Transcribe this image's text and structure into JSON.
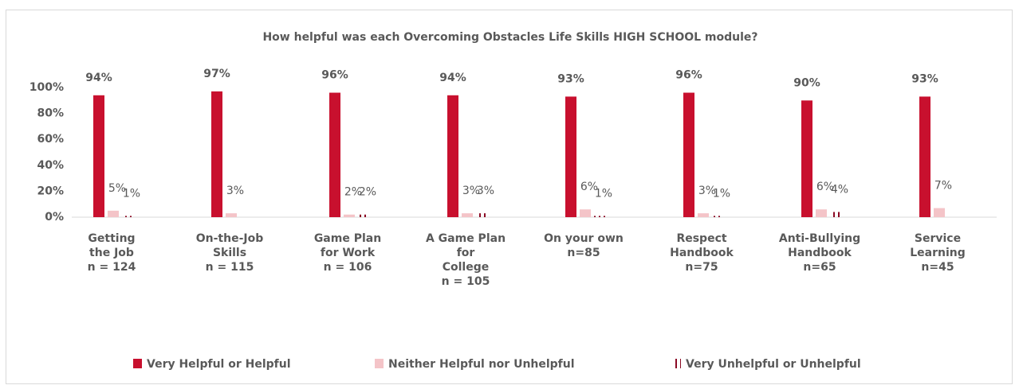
{
  "chart_data": {
    "type": "bar",
    "title": "How helpful was each  Overcoming Obstacles Life Skills HIGH SCHOOL module?",
    "categories": [
      [
        "Getting",
        "the Job",
        "n = 124"
      ],
      [
        "On-the-Job",
        "Skills",
        "n = 115"
      ],
      [
        "Game Plan",
        "for Work",
        "n = 106"
      ],
      [
        "A Game Plan",
        "for",
        "College",
        "n = 105"
      ],
      [
        "On your own",
        "n=85"
      ],
      [
        "Respect",
        "Handbook",
        "n=75"
      ],
      [
        "Anti-Bullying",
        "Handbook",
        "n=65"
      ],
      [
        "Service",
        "Learning",
        "n=45"
      ]
    ],
    "series": [
      {
        "name": "Very Helpful or Helpful",
        "color": "#c8102e",
        "values": [
          94,
          97,
          96,
          94,
          93,
          96,
          90,
          93
        ],
        "value_labels": [
          "94%",
          "97%",
          "96%",
          "94%",
          "93%",
          "96%",
          "90%",
          "93%"
        ]
      },
      {
        "name": "Neither Helpful nor Unhelpful",
        "color": "#f4c4c8",
        "values": [
          5,
          3,
          2,
          3,
          6,
          3,
          6,
          7
        ],
        "value_labels": [
          "5%",
          "3%",
          "2%",
          "3%",
          "6%",
          "3%",
          "6%",
          "7%"
        ]
      },
      {
        "name": "Very Unhelpful or Unhelpful",
        "color": "#8b0a24",
        "pattern": "vertical-stripes",
        "values": [
          1,
          null,
          2,
          3,
          1,
          1,
          4,
          null
        ],
        "value_labels": [
          "1%",
          null,
          "2%",
          "3%",
          "1%",
          "1%",
          "4%",
          null
        ]
      }
    ],
    "ylim": [
      0,
      100
    ],
    "yticks": [
      {
        "value": 0,
        "label": "0%"
      },
      {
        "value": 20,
        "label": "20%"
      },
      {
        "value": 40,
        "label": "40%"
      },
      {
        "value": 60,
        "label": "60%"
      },
      {
        "value": 80,
        "label": "80%"
      },
      {
        "value": 100,
        "label": "100%"
      }
    ],
    "grid": false,
    "legend": "bottom"
  }
}
